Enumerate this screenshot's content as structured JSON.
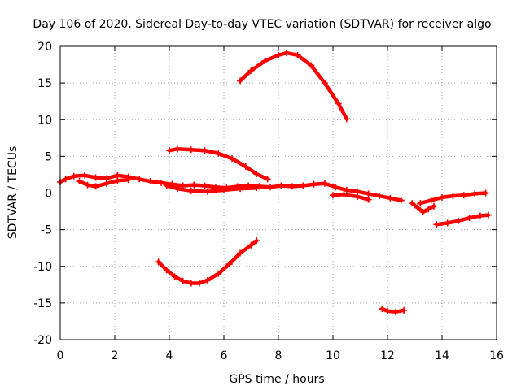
{
  "chart_data": {
    "type": "scatter",
    "title": "Day 106 of 2020, Sidereal Day-to-day VTEC variation (SDTVAR) for receiver algo",
    "xlabel": "GPS time / hours",
    "ylabel": "SDTVAR / TECUs",
    "xlim": [
      0,
      16
    ],
    "ylim": [
      -20,
      20
    ],
    "xticks": [
      0,
      2,
      4,
      6,
      8,
      10,
      12,
      14,
      16
    ],
    "yticks": [
      -20,
      -15,
      -10,
      -5,
      0,
      5,
      10,
      15,
      20
    ],
    "grid": true,
    "marker_color": "#ff0000",
    "series": [
      {
        "name": "arc-upper",
        "x": [
          6.6,
          7.0,
          7.5,
          8.0,
          8.3,
          8.7,
          9.2,
          9.7,
          10.2,
          10.5
        ],
        "y": [
          15.3,
          16.7,
          18.0,
          18.8,
          19.1,
          18.8,
          17.4,
          15.0,
          12.2,
          10.1
        ]
      },
      {
        "name": "arc-mid-descending",
        "x": [
          4.0,
          4.3,
          4.8,
          5.3,
          5.8,
          6.3,
          6.8,
          7.2,
          7.6
        ],
        "y": [
          5.8,
          6.0,
          5.9,
          5.8,
          5.4,
          4.7,
          3.6,
          2.6,
          1.9
        ]
      },
      {
        "name": "band-main",
        "x": [
          0.0,
          0.2,
          0.5,
          0.9,
          1.3,
          1.7,
          2.1,
          2.5,
          2.9,
          3.3,
          3.7,
          4.1,
          4.5,
          4.9,
          5.3,
          5.7,
          6.1,
          6.5,
          6.9,
          7.3,
          7.7,
          8.1,
          8.5,
          8.9,
          9.3,
          9.7,
          10.1,
          10.5,
          10.9,
          11.3,
          11.7,
          12.1,
          12.5
        ],
        "y": [
          1.5,
          1.9,
          2.3,
          2.4,
          2.1,
          2.0,
          2.4,
          2.2,
          1.9,
          1.6,
          1.4,
          1.2,
          1.0,
          1.1,
          1.0,
          0.8,
          0.7,
          0.9,
          1.0,
          0.9,
          0.8,
          1.0,
          0.9,
          1.0,
          1.2,
          1.3,
          0.8,
          0.4,
          0.2,
          -0.1,
          -0.4,
          -0.7,
          -1.0
        ]
      },
      {
        "name": "band-lower-branch",
        "x": [
          0.7,
          1.0,
          1.3,
          1.7,
          2.1,
          2.5
        ],
        "y": [
          1.6,
          1.1,
          0.9,
          1.3,
          1.7,
          1.8
        ]
      },
      {
        "name": "band-under",
        "x": [
          3.9,
          4.3,
          4.8,
          5.4,
          6.0,
          6.6,
          7.2
        ],
        "y": [
          1.0,
          0.6,
          0.3,
          0.2,
          0.4,
          0.6,
          0.7
        ]
      },
      {
        "name": "segment-10",
        "x": [
          10.0,
          10.4,
          10.9,
          11.3
        ],
        "y": [
          -0.3,
          -0.2,
          -0.5,
          -0.9
        ]
      },
      {
        "name": "cluster-13",
        "x": [
          12.9,
          13.1,
          13.3,
          13.5,
          13.7
        ],
        "y": [
          -1.4,
          -2.0,
          -2.6,
          -2.2,
          -1.8
        ]
      },
      {
        "name": "band-late",
        "x": [
          13.2,
          13.6,
          14.0,
          14.4,
          14.8,
          15.2,
          15.6
        ],
        "y": [
          -1.4,
          -1.0,
          -0.6,
          -0.4,
          -0.3,
          -0.1,
          0.0
        ]
      },
      {
        "name": "band-late-lower",
        "x": [
          13.8,
          14.2,
          14.6,
          15.0,
          15.4,
          15.7
        ],
        "y": [
          -4.3,
          -4.1,
          -3.8,
          -3.4,
          -3.1,
          -3.0
        ]
      },
      {
        "name": "trough",
        "x": [
          3.6,
          3.9,
          4.2,
          4.5,
          4.8,
          5.1,
          5.4,
          5.8,
          6.2,
          6.6,
          7.0,
          7.2
        ],
        "y": [
          -9.4,
          -10.5,
          -11.4,
          -12.0,
          -12.3,
          -12.3,
          -11.9,
          -11.0,
          -9.7,
          -8.2,
          -7.1,
          -6.5
        ]
      },
      {
        "name": "dash-12",
        "x": [
          11.8,
          12.0,
          12.3,
          12.6
        ],
        "y": [
          -15.8,
          -16.1,
          -16.2,
          -16.0
        ]
      }
    ]
  }
}
